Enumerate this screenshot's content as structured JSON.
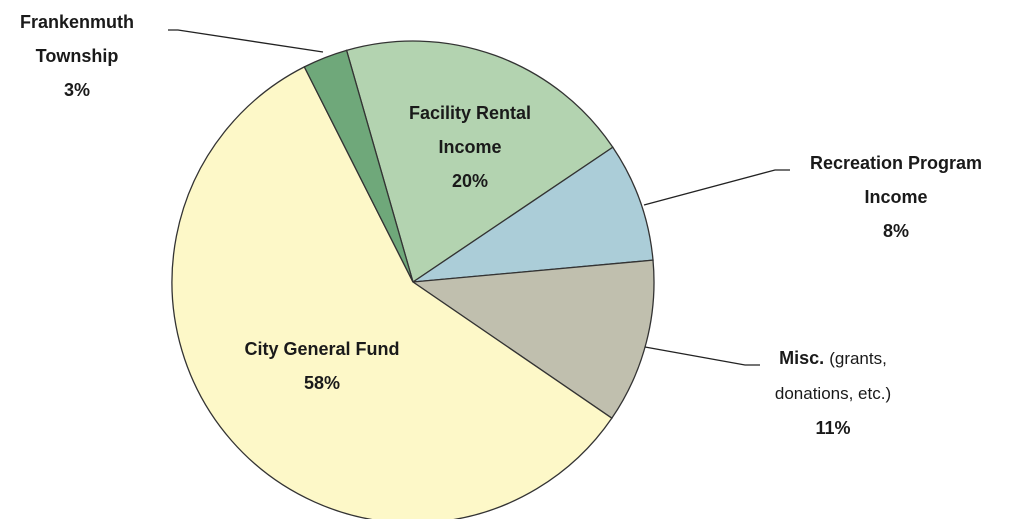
{
  "chart_data": {
    "type": "pie",
    "categories": [
      "Facility Rental Income",
      "Recreation Program Income",
      "Misc.",
      "City General Fund",
      "Frankenmuth Township"
    ],
    "values": [
      20,
      8,
      11,
      58,
      3
    ],
    "value_labels": [
      "20%",
      "8%",
      "11%",
      "58%",
      "3%"
    ],
    "colors": [
      "#b3d3b0",
      "#abcdd8",
      "#c0bfae",
      "#fdf8c8",
      "#6fa87a"
    ],
    "annotations": [
      {
        "text": "(grants, donations, etc.)"
      }
    ]
  }
}
